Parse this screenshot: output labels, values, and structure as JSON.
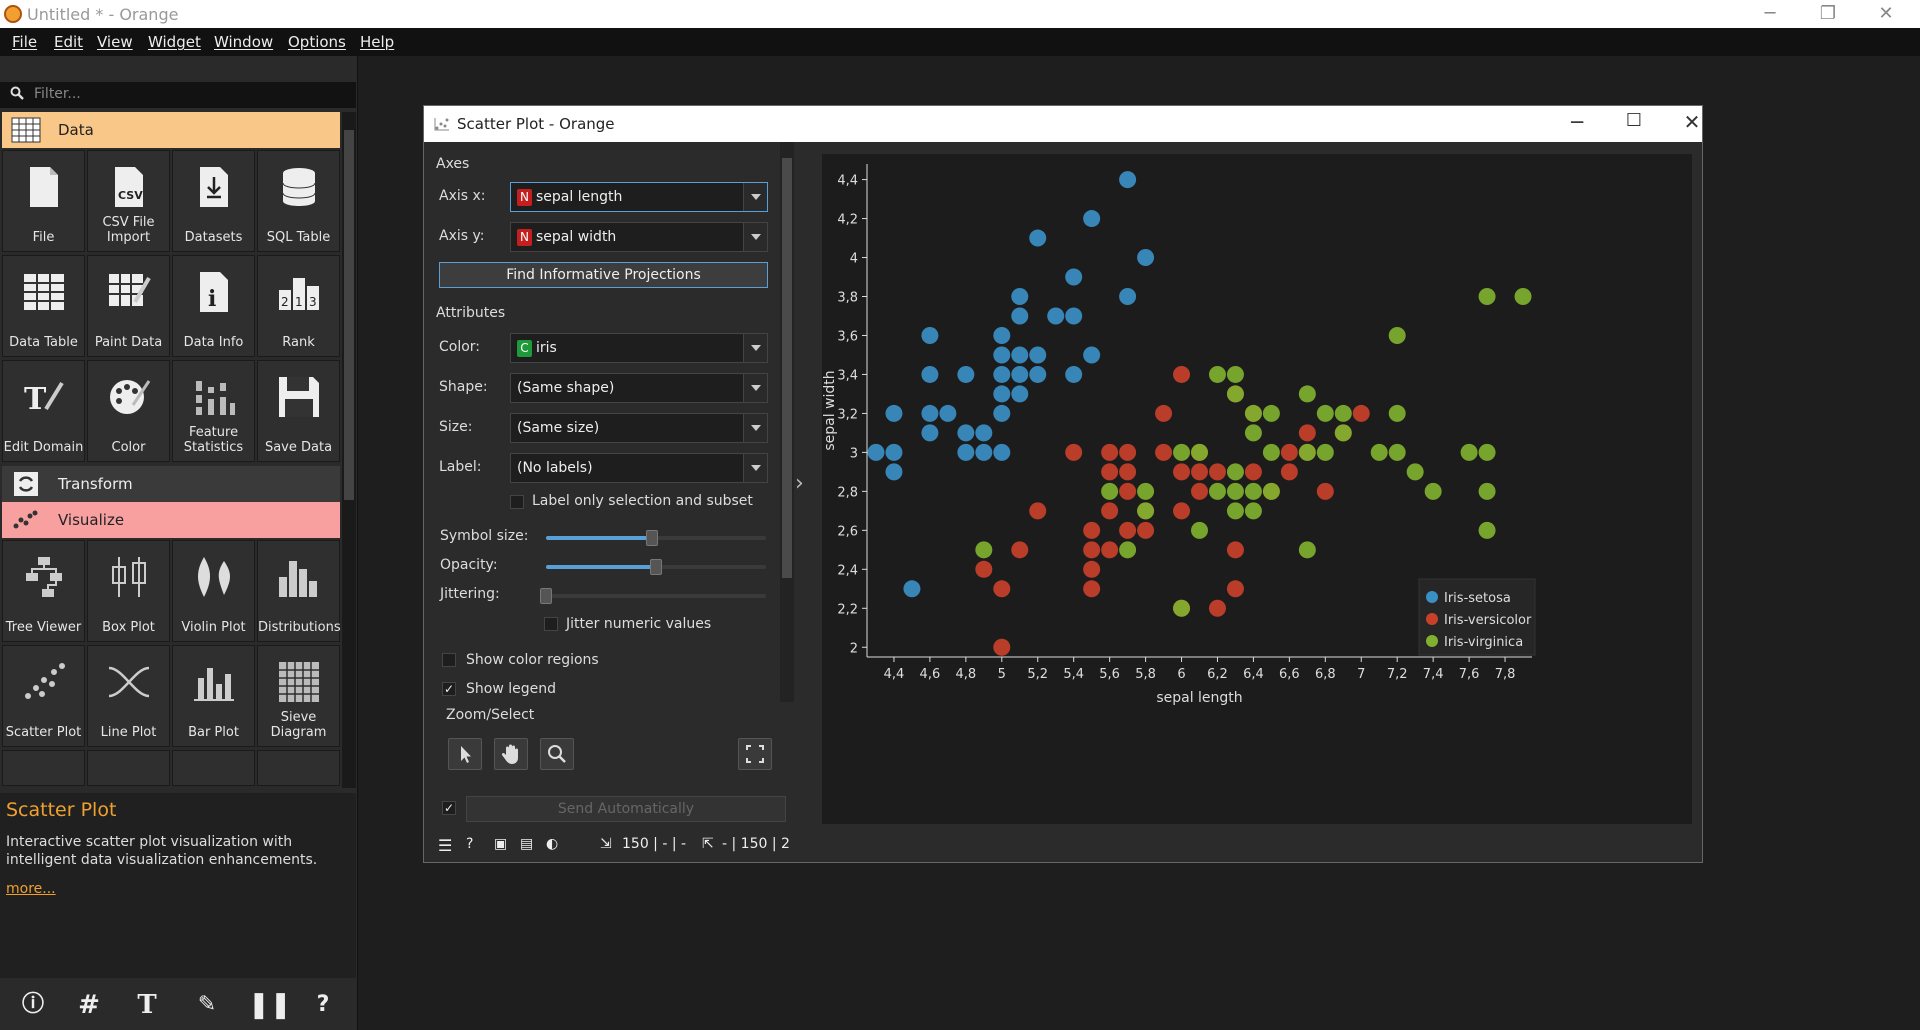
{
  "window": {
    "title": "Untitled * - Orange",
    "controls": [
      "─",
      "❐",
      "✕"
    ]
  },
  "menu": [
    "File",
    "Edit",
    "View",
    "Widget",
    "Window",
    "Options",
    "Help"
  ],
  "filter": {
    "placeholder": "Filter..."
  },
  "categories": {
    "data": {
      "label": "Data",
      "color": "#f9c787"
    },
    "transform": {
      "label": "Transform"
    },
    "visualize": {
      "label": "Visualize",
      "color": "#f8a0a0"
    }
  },
  "data_widgets": [
    "File",
    "CSV File\nImport",
    "Datasets",
    "SQL Table",
    "Data Table",
    "Paint Data",
    "Data Info",
    "Rank",
    "Edit Domain",
    "Color",
    "Feature\nStatistics",
    "Save Data"
  ],
  "visualize_widgets": [
    "Tree Viewer",
    "Box Plot",
    "Violin Plot",
    "Distributions",
    "Scatter Plot",
    "Line Plot",
    "Bar Plot",
    "Sieve\nDiagram"
  ],
  "help": {
    "title": "Scatter Plot",
    "description": "Interactive scatter plot visualization with intelligent data visualization enhancements.",
    "more": "more..."
  },
  "scatter_window": {
    "title": "Scatter Plot - Orange",
    "axes_section": "Axes",
    "axis_x_label": "Axis x:",
    "axis_x_value": "sepal length",
    "axis_y_label": "Axis y:",
    "axis_y_value": "sepal width",
    "find_projections": "Find Informative Projections",
    "attributes_section": "Attributes",
    "color_label": "Color:",
    "color_value": "iris",
    "shape_label": "Shape:",
    "shape_value": "(Same shape)",
    "size_label": "Size:",
    "size_value": "(Same size)",
    "label_label": "Label:",
    "label_value": "(No labels)",
    "label_only_selection": "Label only selection and subset",
    "symbol_size_label": "Symbol size:",
    "symbol_size_value": 0.48,
    "opacity_label": "Opacity:",
    "opacity_value": 0.5,
    "jittering_label": "Jittering:",
    "jittering_value": 0,
    "jitter_numeric": "Jitter numeric values",
    "show_color_regions": "Show color regions",
    "show_legend": "Show legend",
    "zoom_select": "Zoom/Select",
    "send_auto": "Send Automatically",
    "tag_n": "N",
    "tag_c": "C",
    "status": {
      "input": "150 | - | -",
      "output": "- | 150 | 2"
    }
  },
  "chart_data": {
    "type": "scatter",
    "xlabel": "sepal length",
    "ylabel": "sepal width",
    "xlim": [
      4.25,
      7.95
    ],
    "ylim": [
      1.95,
      4.48
    ],
    "xticks": [
      "4,4",
      "4,6",
      "4,8",
      "5",
      "5,2",
      "5,4",
      "5,6",
      "5,8",
      "6",
      "6,2",
      "6,4",
      "6,6",
      "6,8",
      "7",
      "7,2",
      "7,4",
      "7,6",
      "7,8"
    ],
    "yticks": [
      "2",
      "2,2",
      "2,4",
      "2,6",
      "2,8",
      "3",
      "3,2",
      "3,4",
      "3,6",
      "3,8",
      "4",
      "4,2",
      "4,4"
    ],
    "legend": {
      "position": "bottom-right"
    },
    "series": [
      {
        "name": "Iris-setosa",
        "color": "#3a8fc4",
        "points": [
          [
            4.3,
            3.0
          ],
          [
            4.4,
            2.9
          ],
          [
            4.4,
            3.0
          ],
          [
            4.4,
            3.2
          ],
          [
            4.5,
            2.3
          ],
          [
            4.6,
            3.1
          ],
          [
            4.6,
            3.2
          ],
          [
            4.6,
            3.4
          ],
          [
            4.6,
            3.6
          ],
          [
            4.7,
            3.2
          ],
          [
            4.8,
            3.0
          ],
          [
            4.8,
            3.1
          ],
          [
            4.8,
            3.4
          ],
          [
            4.9,
            3.0
          ],
          [
            4.9,
            3.1
          ],
          [
            5.0,
            3.0
          ],
          [
            5.0,
            3.2
          ],
          [
            5.0,
            3.3
          ],
          [
            5.0,
            3.4
          ],
          [
            5.0,
            3.5
          ],
          [
            5.0,
            3.6
          ],
          [
            5.1,
            3.3
          ],
          [
            5.1,
            3.4
          ],
          [
            5.1,
            3.5
          ],
          [
            5.1,
            3.7
          ],
          [
            5.1,
            3.8
          ],
          [
            5.2,
            3.4
          ],
          [
            5.2,
            3.5
          ],
          [
            5.2,
            4.1
          ],
          [
            5.3,
            3.7
          ],
          [
            5.4,
            3.4
          ],
          [
            5.4,
            3.7
          ],
          [
            5.4,
            3.9
          ],
          [
            5.5,
            3.5
          ],
          [
            5.5,
            4.2
          ],
          [
            5.7,
            3.8
          ],
          [
            5.7,
            4.4
          ],
          [
            5.8,
            4.0
          ]
        ]
      },
      {
        "name": "Iris-versicolor",
        "color": "#c8402a",
        "points": [
          [
            4.9,
            2.4
          ],
          [
            5.0,
            2.0
          ],
          [
            5.0,
            2.3
          ],
          [
            5.1,
            2.5
          ],
          [
            5.2,
            2.7
          ],
          [
            5.4,
            3.0
          ],
          [
            5.5,
            2.3
          ],
          [
            5.5,
            2.4
          ],
          [
            5.5,
            2.5
          ],
          [
            5.5,
            2.6
          ],
          [
            5.6,
            2.5
          ],
          [
            5.6,
            2.7
          ],
          [
            5.6,
            2.9
          ],
          [
            5.6,
            3.0
          ],
          [
            5.7,
            2.6
          ],
          [
            5.7,
            2.8
          ],
          [
            5.7,
            2.9
          ],
          [
            5.7,
            3.0
          ],
          [
            5.8,
            2.6
          ],
          [
            5.8,
            2.7
          ],
          [
            5.9,
            3.0
          ],
          [
            5.9,
            3.2
          ],
          [
            6.0,
            2.2
          ],
          [
            6.0,
            2.7
          ],
          [
            6.0,
            2.9
          ],
          [
            6.0,
            3.4
          ],
          [
            6.1,
            2.8
          ],
          [
            6.1,
            2.9
          ],
          [
            6.1,
            3.0
          ],
          [
            6.2,
            2.2
          ],
          [
            6.2,
            2.9
          ],
          [
            6.3,
            2.3
          ],
          [
            6.3,
            2.5
          ],
          [
            6.3,
            3.3
          ],
          [
            6.4,
            2.9
          ],
          [
            6.4,
            3.2
          ],
          [
            6.5,
            2.8
          ],
          [
            6.6,
            2.9
          ],
          [
            6.6,
            3.0
          ],
          [
            6.7,
            3.0
          ],
          [
            6.7,
            3.1
          ],
          [
            6.8,
            2.8
          ],
          [
            6.9,
            3.1
          ],
          [
            7.0,
            3.2
          ]
        ]
      },
      {
        "name": "Iris-virginica",
        "color": "#7fb02e",
        "points": [
          [
            4.9,
            2.5
          ],
          [
            5.6,
            2.8
          ],
          [
            5.7,
            2.5
          ],
          [
            5.8,
            2.7
          ],
          [
            5.8,
            2.8
          ],
          [
            6.0,
            2.2
          ],
          [
            6.0,
            3.0
          ],
          [
            6.1,
            2.6
          ],
          [
            6.1,
            3.0
          ],
          [
            6.2,
            2.8
          ],
          [
            6.2,
            3.4
          ],
          [
            6.3,
            2.7
          ],
          [
            6.3,
            2.8
          ],
          [
            6.3,
            2.9
          ],
          [
            6.3,
            3.3
          ],
          [
            6.3,
            3.4
          ],
          [
            6.4,
            2.7
          ],
          [
            6.4,
            2.8
          ],
          [
            6.4,
            3.1
          ],
          [
            6.4,
            3.2
          ],
          [
            6.5,
            2.8
          ],
          [
            6.5,
            3.0
          ],
          [
            6.5,
            3.2
          ],
          [
            6.7,
            2.5
          ],
          [
            6.7,
            3.0
          ],
          [
            6.7,
            3.3
          ],
          [
            6.8,
            3.0
          ],
          [
            6.8,
            3.2
          ],
          [
            6.9,
            3.1
          ],
          [
            6.9,
            3.2
          ],
          [
            7.1,
            3.0
          ],
          [
            7.2,
            3.0
          ],
          [
            7.2,
            3.2
          ],
          [
            7.2,
            3.6
          ],
          [
            7.3,
            2.9
          ],
          [
            7.4,
            2.8
          ],
          [
            7.6,
            3.0
          ],
          [
            7.7,
            2.6
          ],
          [
            7.7,
            2.8
          ],
          [
            7.7,
            3.0
          ],
          [
            7.7,
            3.8
          ],
          [
            7.9,
            3.8
          ]
        ]
      }
    ]
  }
}
